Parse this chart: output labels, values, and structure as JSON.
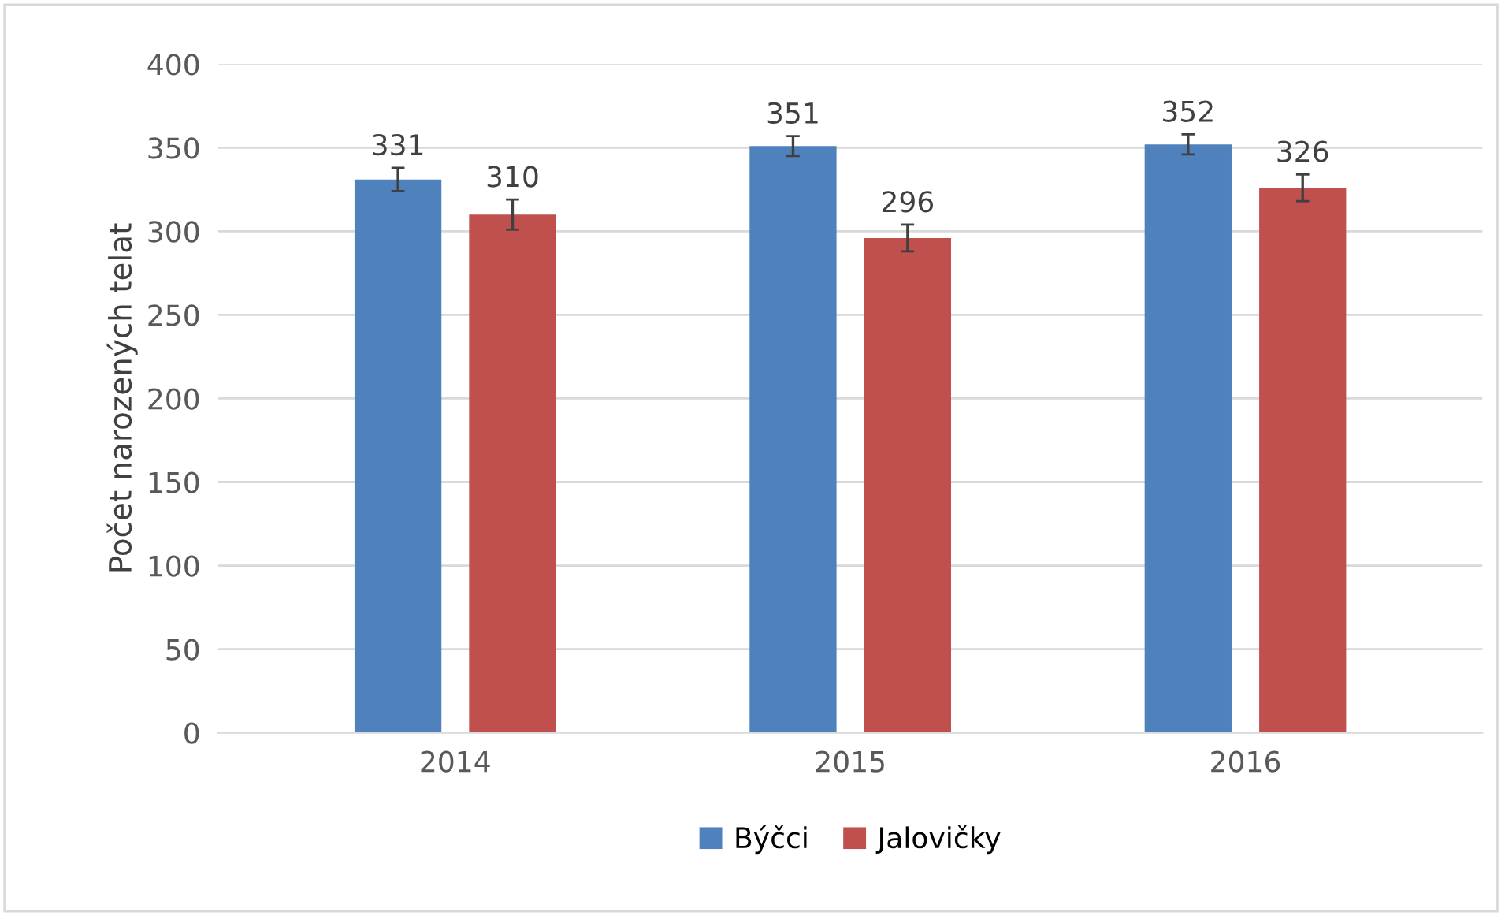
{
  "chart_data": {
    "type": "bar",
    "ylabel": "Počet narozených telat",
    "categories": [
      "2014",
      "2015",
      "2016"
    ],
    "series": [
      {
        "name": "Býčci",
        "color": "#4f81bd",
        "values": [
          331,
          351,
          352
        ],
        "errors": [
          7,
          6,
          6
        ]
      },
      {
        "name": "Jalovičky",
        "color": "#c0504d",
        "values": [
          310,
          296,
          326
        ],
        "errors": [
          9,
          8,
          8
        ]
      }
    ],
    "ylim": [
      0,
      400
    ],
    "yticks": [
      0,
      50,
      100,
      150,
      200,
      250,
      300,
      350,
      400
    ],
    "grid": "y",
    "legend": "bottom",
    "data_labels": true
  }
}
